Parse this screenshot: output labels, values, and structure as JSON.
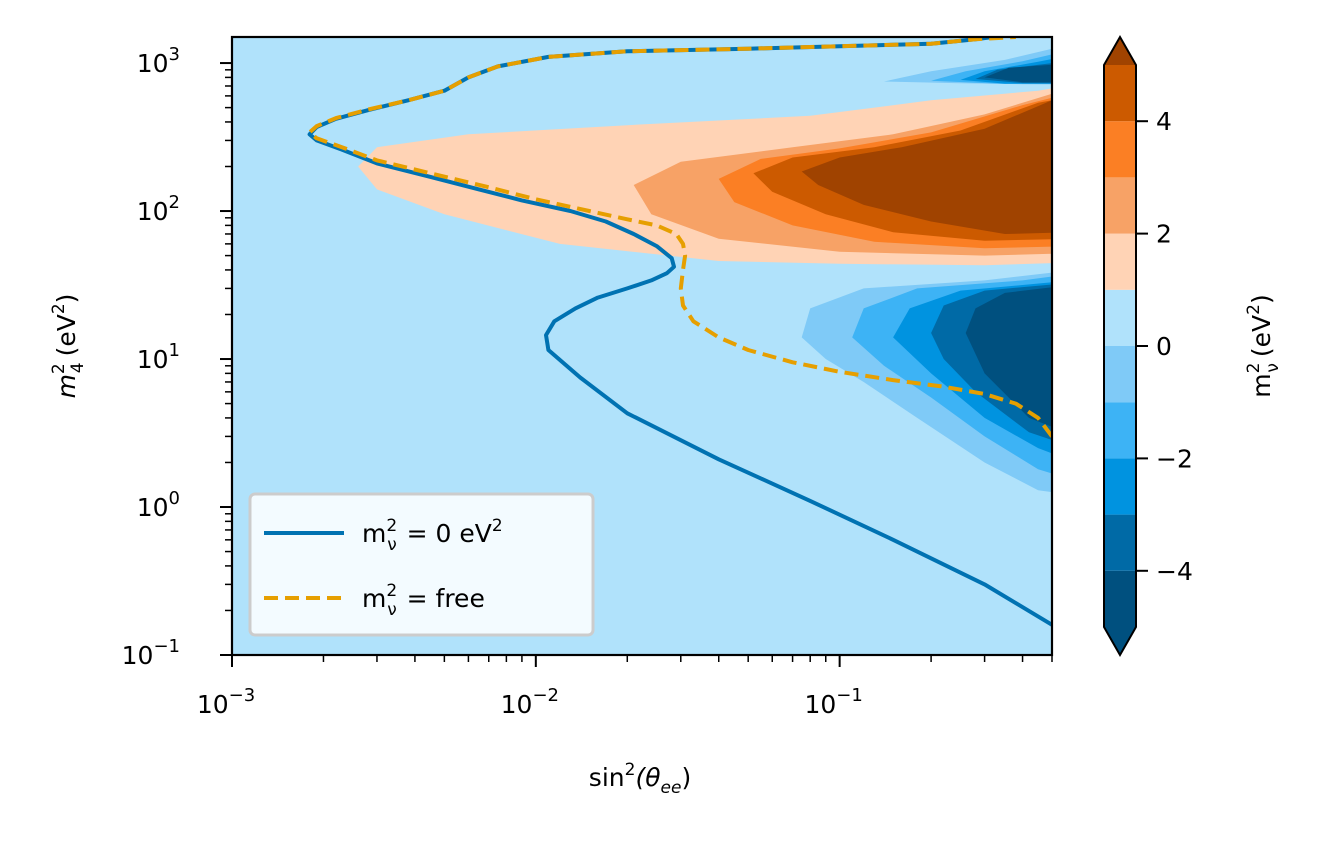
{
  "chart_data": {
    "type": "heatmap",
    "title": "",
    "xlabel": {
      "base": "sin",
      "sup": "2",
      "mid": "(θ",
      "sub": "ee",
      "tail": ")"
    },
    "ylabel": {
      "base": "m",
      "sup": "2",
      "sub": "4",
      "unit": "(eV",
      "unit_sup": "2",
      "tail": ")"
    },
    "x_scale": "log",
    "y_scale": "log",
    "xlim": [
      0.001,
      0.5
    ],
    "ylim": [
      0.1,
      1500
    ],
    "x_ticks": [
      {
        "value": 0.001,
        "base": "10",
        "exp": "−3"
      },
      {
        "value": 0.01,
        "base": "10",
        "exp": "−2"
      },
      {
        "value": 0.1,
        "base": "10",
        "exp": "−1"
      }
    ],
    "y_ticks": [
      {
        "value": 0.1,
        "base": "10",
        "exp": "−1"
      },
      {
        "value": 1,
        "base": "10",
        "exp": "0"
      },
      {
        "value": 10,
        "base": "10",
        "exp": "1"
      },
      {
        "value": 100,
        "base": "10",
        "exp": "2"
      },
      {
        "value": 1000,
        "base": "10",
        "exp": "3"
      }
    ],
    "colorbar": {
      "label": {
        "base": "m",
        "sup": "2",
        "sub": "ν",
        "unit": "(eV",
        "unit_sup": "2",
        "tail": ")"
      },
      "range": [
        -5,
        5
      ],
      "levels": [
        -5,
        -4,
        -3,
        -2,
        -1,
        0,
        1,
        2,
        3,
        4,
        5
      ],
      "extend": "both",
      "ticks": [
        {
          "value": -4,
          "label": "−4"
        },
        {
          "value": -2,
          "label": "−2"
        },
        {
          "value": 0,
          "label": "0"
        },
        {
          "value": 2,
          "label": "2"
        },
        {
          "value": 4,
          "label": "4"
        }
      ],
      "colors": {
        "below": "#00507f",
        "-5": "#00507f",
        "-4": "#006aa6",
        "-3": "#0093e0",
        "-2": "#3db3f5",
        "-1": "#7fcaf7",
        "0": "#b0e2fb",
        "1": "#ffd3b5",
        "2": "#f7a266",
        "3": "#fb7f24",
        "4": "#cc5a00",
        "above": "#a04300"
      }
    },
    "series": [
      {
        "name": "m²ν = 0 eV²",
        "label": {
          "base": "m",
          "sup": "2",
          "sub": "ν",
          "rest": " = 0 eV",
          "rest_sup": "2"
        },
        "style": "solid",
        "color": "#0072b2",
        "x": [
          0.5,
          0.3,
          0.15,
          0.08,
          0.04,
          0.02,
          0.014,
          0.011,
          0.0108,
          0.0115,
          0.0135,
          0.016,
          0.02,
          0.024,
          0.027,
          0.0285,
          0.028,
          0.025,
          0.021,
          0.017,
          0.013,
          0.009,
          0.0065,
          0.0045,
          0.003,
          0.0023,
          0.0019,
          0.0018,
          0.0019,
          0.0022,
          0.0028,
          0.0038,
          0.005,
          0.006,
          0.0075,
          0.011,
          0.02,
          0.05,
          0.1,
          0.2,
          0.28,
          0.32
        ],
        "y": [
          0.16,
          0.3,
          0.6,
          1.1,
          2.1,
          4.3,
          7.5,
          11.5,
          14.5,
          18,
          22,
          26,
          30,
          34,
          38,
          42,
          48,
          58,
          70,
          85,
          100,
          118,
          140,
          170,
          210,
          260,
          300,
          330,
          370,
          420,
          480,
          560,
          650,
          800,
          950,
          1100,
          1200,
          1250,
          1300,
          1350,
          1450,
          1500
        ]
      },
      {
        "name": "m²ν = free",
        "label": {
          "base": "m",
          "sup": "2",
          "sub": "ν",
          "rest": " = free",
          "rest_sup": ""
        },
        "style": "dashed",
        "color": "#e69f00",
        "x": [
          0.5,
          0.45,
          0.38,
          0.3,
          0.22,
          0.15,
          0.1,
          0.07,
          0.05,
          0.04,
          0.033,
          0.0305,
          0.03,
          0.0305,
          0.031,
          0.0305,
          0.029,
          0.025,
          0.02,
          0.015,
          0.01,
          0.007,
          0.0045,
          0.003,
          0.0023,
          0.0019,
          0.0018,
          0.0019,
          0.0022,
          0.0028,
          0.0038,
          0.005,
          0.006,
          0.0075,
          0.011,
          0.02,
          0.05,
          0.1,
          0.2,
          0.28,
          0.38
        ],
        "y": [
          3,
          4,
          5,
          5.8,
          6.5,
          7.2,
          8.2,
          9.5,
          11.5,
          14,
          18,
          23,
          30,
          40,
          50,
          60,
          70,
          80,
          88,
          100,
          120,
          145,
          180,
          220,
          270,
          310,
          340,
          375,
          425,
          485,
          560,
          650,
          800,
          950,
          1100,
          1200,
          1250,
          1300,
          1350,
          1450,
          1500
        ]
      }
    ],
    "legend": {
      "position": "lower-left"
    }
  }
}
